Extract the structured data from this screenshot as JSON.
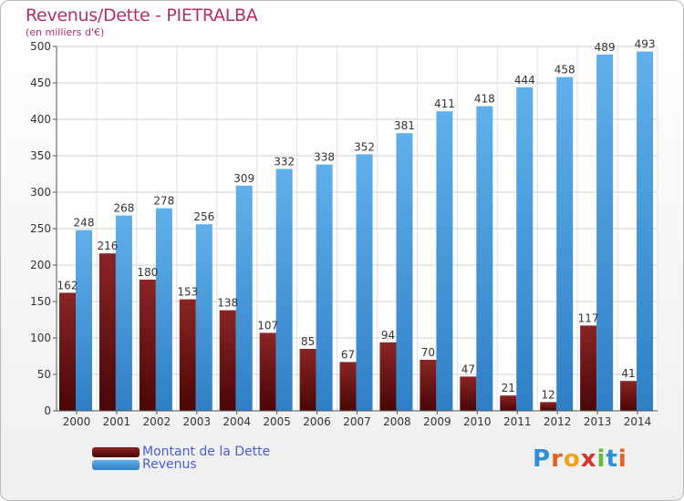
{
  "header": {
    "title": "Revenus/Dette - PIETRALBA",
    "subtitle": "(en milliers d'€)"
  },
  "chart_data": {
    "type": "bar",
    "title": "Revenus/Dette - PIETRALBA",
    "subtitle": "(en milliers d'€)",
    "categories": [
      "2000",
      "2001",
      "2002",
      "2003",
      "2004",
      "2005",
      "2006",
      "2007",
      "2008",
      "2009",
      "2010",
      "2011",
      "2012",
      "2013",
      "2014"
    ],
    "series": [
      {
        "name": "Montant de la Dette",
        "color": "#7a1a1a",
        "values": [
          162,
          216,
          180,
          153,
          138,
          107,
          85,
          67,
          94,
          70,
          47,
          21,
          12,
          117,
          41
        ]
      },
      {
        "name": "Revenus",
        "color": "#4a9fe0",
        "values": [
          248,
          268,
          278,
          256,
          309,
          332,
          338,
          352,
          381,
          411,
          418,
          444,
          458,
          489,
          493
        ]
      }
    ],
    "ylim": [
      0,
      500
    ],
    "yticks": [
      0,
      50,
      100,
      150,
      200,
      250,
      300,
      350,
      400,
      450,
      500
    ],
    "grid": true,
    "legend": "bottom-left"
  },
  "legend": {
    "debt_label": "Montant de la Dette",
    "revenue_label": "Revenus"
  },
  "logo": {
    "text": "Proxiti"
  }
}
